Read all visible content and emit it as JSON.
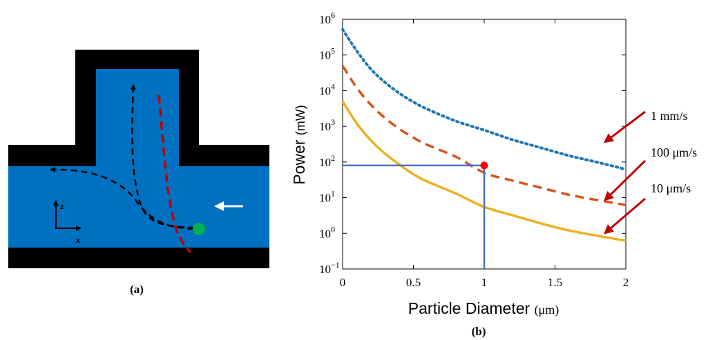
{
  "colors": {
    "fluid": "#0070C0",
    "wall": "#000000",
    "particle": "#00B050",
    "flow_arrow": "#ffffff",
    "particle_path": "#000000",
    "laser_path": "#C00000",
    "series_1mm": "#1F77B4",
    "series_100um": "#D95319",
    "series_10um": "#EDB120",
    "guide_lines": "#4472C4",
    "marker": "#FF0000",
    "annotation_arrows": "#C00000"
  },
  "panel_a": {
    "caption": "(a)",
    "axis_z": "z",
    "axis_x": "x",
    "icons": [
      "particle-path-icon",
      "flow-direction-arrow-icon",
      "coordinate-axes-icon"
    ]
  },
  "panel_b": {
    "caption": "(b)",
    "annotations": [
      "1 mm/s",
      "100 μm/s",
      "10 μm/s"
    ]
  },
  "chart_data": {
    "type": "line",
    "xlabel": "Particle Diameter",
    "xlabel_unit": "(μm)",
    "ylabel": "Power",
    "ylabel_unit": "(mW)",
    "xlim": [
      0,
      2
    ],
    "ylim": [
      0.1,
      1000000
    ],
    "yscale": "log",
    "grid": false,
    "x_ticks": [
      0,
      0.5,
      1,
      1.5,
      2
    ],
    "x_tick_labels": [
      "0",
      "0.5",
      "1",
      "1.5",
      "2"
    ],
    "y_tick_labels": [
      {
        "base": "10",
        "exp": "−1"
      },
      {
        "base": "10",
        "exp": "0"
      },
      {
        "base": "10",
        "exp": "1"
      },
      {
        "base": "10",
        "exp": "2"
      },
      {
        "base": "10",
        "exp": "3"
      },
      {
        "base": "10",
        "exp": "4"
      },
      {
        "base": "10",
        "exp": "5"
      },
      {
        "base": "10",
        "exp": "6"
      }
    ],
    "y_tick_exponents": [
      -1,
      0,
      1,
      2,
      3,
      4,
      5,
      6
    ],
    "series": [
      {
        "annotation": "1 mm/s",
        "style": "dotted",
        "x": [
          0,
          0.1,
          0.2,
          0.3,
          0.4,
          0.5,
          0.6,
          0.8,
          1.0,
          1.2,
          1.4,
          1.6,
          1.8,
          2.0
        ],
        "y": [
          520000,
          130000,
          40000,
          17000,
          8500,
          4800,
          3000,
          1400,
          780,
          420,
          250,
          150,
          98,
          62
        ]
      },
      {
        "annotation": "100 μm/s",
        "style": "dashed",
        "x": [
          0,
          0.1,
          0.2,
          0.3,
          0.4,
          0.5,
          0.6,
          0.8,
          1.0,
          1.2,
          1.4,
          1.6,
          1.8,
          2.0
        ],
        "y": [
          50000,
          12000,
          4000,
          1700,
          850,
          480,
          300,
          140,
          50,
          30,
          19,
          12,
          8.5,
          6.2
        ]
      },
      {
        "annotation": "10 μm/s",
        "style": "solid",
        "x": [
          0,
          0.1,
          0.2,
          0.3,
          0.4,
          0.5,
          0.6,
          0.8,
          1.0,
          1.2,
          1.4,
          1.6,
          1.8,
          2.0
        ],
        "y": [
          5000,
          1200,
          400,
          170,
          85,
          45,
          28,
          13,
          5.5,
          3.2,
          1.9,
          1.2,
          0.85,
          0.62
        ]
      }
    ],
    "highlight_point": {
      "x": 1,
      "y": 80
    },
    "guide_lines": [
      {
        "from": [
          0,
          80
        ],
        "to": [
          1,
          80
        ]
      },
      {
        "from": [
          1,
          0.1
        ],
        "to": [
          1,
          80
        ]
      }
    ]
  }
}
